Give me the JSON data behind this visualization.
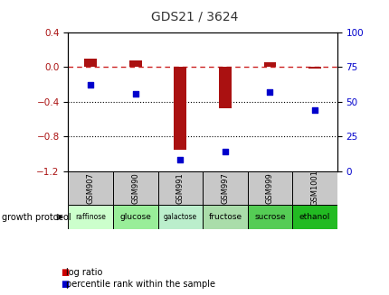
{
  "title": "GDS21 / 3624",
  "samples": [
    "GSM907",
    "GSM990",
    "GSM991",
    "GSM997",
    "GSM999",
    "GSM1001"
  ],
  "log_ratio": [
    0.1,
    0.075,
    -0.95,
    -0.48,
    0.055,
    -0.02
  ],
  "percentile_rank": [
    62,
    56,
    8,
    14,
    57,
    44
  ],
  "protocols": [
    "raffinose",
    "glucose",
    "galactose",
    "fructose",
    "sucrose",
    "ethanol"
  ],
  "protocol_colors": [
    "#ccffcc",
    "#99ee99",
    "#bbeecc",
    "#aaddaa",
    "#55cc55",
    "#22bb22"
  ],
  "bar_color": "#aa1111",
  "dot_color": "#0000cc",
  "left_ylim": [
    -1.2,
    0.4
  ],
  "left_yticks": [
    -1.2,
    -0.8,
    -0.4,
    0.0,
    0.4
  ],
  "right_ylim": [
    0,
    100
  ],
  "right_yticks": [
    0,
    25,
    50,
    75,
    100
  ],
  "zero_line_color": "#cc2222",
  "grid_color": "#000000",
  "title_color": "#333333",
  "title_fontsize": 10,
  "sample_bg": "#c8c8c8",
  "legend_red": "#cc0000",
  "legend_blue": "#0000cc"
}
